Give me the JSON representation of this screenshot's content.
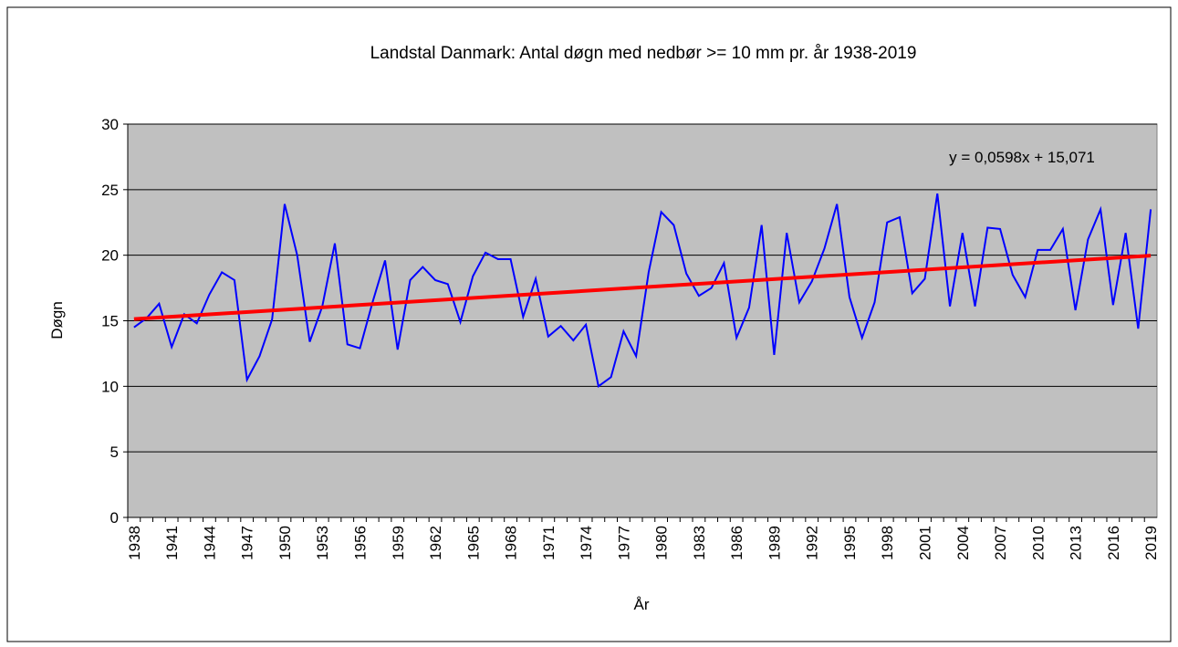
{
  "chart_data": {
    "type": "line",
    "title": "Landstal Danmark: Antal  døgn med nedbør >= 10 mm pr. år 1938-2019",
    "xlabel": "År",
    "ylabel": "Døgn",
    "annotation": "y = 0,0598x + 15,071",
    "categories": [
      "1938",
      null,
      null,
      "1941",
      null,
      null,
      "1944",
      null,
      null,
      "1947",
      null,
      null,
      "1950",
      null,
      null,
      "1953",
      null,
      null,
      "1956",
      null,
      null,
      "1959",
      null,
      null,
      "1962",
      null,
      null,
      "1965",
      null,
      null,
      "1968",
      null,
      null,
      "1971",
      null,
      null,
      "1974",
      null,
      null,
      "1977",
      null,
      null,
      "1980",
      null,
      null,
      "1983",
      null,
      null,
      "1986",
      null,
      null,
      "1989",
      null,
      null,
      "1992",
      null,
      null,
      "1995",
      null,
      null,
      "1998",
      null,
      null,
      "2001",
      null,
      null,
      "2004",
      null,
      null,
      "2007",
      null,
      null,
      "2010",
      null,
      null,
      "2013",
      null,
      null,
      "2016",
      null,
      null,
      "2019"
    ],
    "series": [
      {
        "name": "Døgn",
        "color": "#0000ff",
        "values": [
          14.5,
          15.2,
          16.3,
          13.0,
          15.5,
          14.8,
          17.0,
          18.7,
          18.1,
          10.5,
          12.3,
          15.1,
          23.9,
          20.0,
          13.4,
          16.1,
          20.9,
          13.2,
          12.9,
          16.4,
          19.6,
          12.8,
          18.1,
          19.1,
          18.1,
          17.8,
          14.9,
          18.4,
          20.2,
          19.7,
          19.7,
          15.3,
          18.2,
          13.8,
          14.6,
          13.5,
          14.7,
          10.0,
          10.7,
          14.2,
          12.3,
          18.7,
          23.3,
          22.3,
          18.6,
          16.9,
          17.5,
          19.4,
          13.7,
          16.0,
          22.3,
          12.4,
          21.7,
          16.4,
          18.0,
          20.5,
          23.9,
          16.8,
          13.7,
          16.4,
          22.5,
          22.9,
          17.1,
          18.2,
          24.7,
          16.1,
          21.7,
          16.1,
          22.1,
          22.0,
          18.5,
          16.8,
          20.4,
          20.4,
          22.0,
          15.8,
          21.2,
          23.5,
          16.2,
          21.7,
          14.4,
          23.5
        ]
      }
    ],
    "trend": {
      "color": "#ff0000",
      "values": [
        15.13,
        19.97
      ]
    },
    "ylim": [
      0,
      30
    ],
    "yticks": [
      0,
      5,
      10,
      15,
      20,
      25,
      30
    ],
    "grid": true
  }
}
